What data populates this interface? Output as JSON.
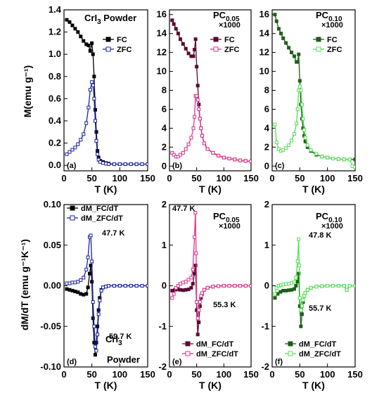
{
  "figure": {
    "top_ylabel": "M(emu g⁻¹)",
    "bottom_ylabel": "dM/dT (emu g⁻¹K⁻¹)",
    "xlabel": "T (K)"
  },
  "chart_data": [
    {
      "id": "a",
      "type": "line",
      "panel_label": "(a)",
      "title": "CrI3 Powder",
      "xlabel": "T (K)",
      "ylabel": "M(emu g-1)",
      "xlim": [
        0,
        150
      ],
      "ylim": [
        -0.05,
        1.4
      ],
      "xticks": [
        "0",
        "50",
        "100",
        "150"
      ],
      "yticks": [
        "0.0",
        "0.2",
        "0.4",
        "0.6",
        "0.8",
        "1.0",
        "1.2",
        "1.4"
      ],
      "legend": "right",
      "series": [
        {
          "name": "FC",
          "color": "#000000",
          "marker": "filled",
          "x": [
            5,
            10,
            15,
            20,
            25,
            30,
            35,
            40,
            44,
            47,
            50,
            52,
            54,
            56,
            58,
            60,
            62,
            65,
            70,
            75,
            80,
            90,
            100,
            110,
            120,
            130,
            140,
            150
          ],
          "y": [
            1.31,
            1.29,
            1.26,
            1.23,
            1.2,
            1.16,
            1.12,
            1.09,
            1.08,
            1.03,
            1.1,
            1.0,
            0.8,
            0.5,
            0.3,
            0.13,
            0.07,
            0.04,
            0.03,
            0.02,
            0.015,
            0.01,
            0.01,
            0.01,
            0.01,
            0.01,
            0.01,
            0.01
          ]
        },
        {
          "name": "ZFC",
          "color": "#1a22a0",
          "marker": "open",
          "x": [
            5,
            10,
            15,
            20,
            25,
            30,
            35,
            40,
            44,
            47,
            50,
            52,
            54,
            56,
            58,
            60,
            62,
            65,
            70,
            75,
            80,
            90,
            100,
            110,
            120,
            130,
            140,
            150
          ],
          "y": [
            0.1,
            0.12,
            0.14,
            0.16,
            0.19,
            0.23,
            0.28,
            0.38,
            0.52,
            0.68,
            0.75,
            0.72,
            0.6,
            0.4,
            0.22,
            0.1,
            0.05,
            0.03,
            0.02,
            0.015,
            0.01,
            0.01,
            0.01,
            0.01,
            0.01,
            0.01,
            0.01,
            0.01
          ]
        }
      ]
    },
    {
      "id": "b",
      "type": "line",
      "panel_label": "(b)",
      "title": "PC0.05",
      "title_note": "×1000",
      "xlabel": "T (K)",
      "xlim": [
        0,
        150
      ],
      "ylim": [
        -0.5,
        16.5
      ],
      "xticks": [
        "0",
        "50",
        "100",
        "150"
      ],
      "yticks": [
        "0",
        "2",
        "4",
        "6",
        "8",
        "10",
        "12",
        "14",
        "16"
      ],
      "legend": "right",
      "series": [
        {
          "name": "FC",
          "color": "#5a0a30",
          "marker": "filled",
          "x": [
            5,
            8,
            12,
            16,
            20,
            25,
            30,
            35,
            40,
            44,
            46,
            48,
            50,
            52,
            54,
            56,
            58,
            60,
            64,
            70,
            80,
            90,
            100,
            110,
            120,
            130,
            140,
            150
          ],
          "y": [
            15.4,
            15.0,
            14.5,
            14.0,
            13.4,
            12.9,
            12.4,
            11.9,
            11.6,
            11.6,
            12.3,
            13.4,
            10.5,
            8.5,
            6.5,
            5.0,
            4.0,
            3.2,
            2.4,
            1.8,
            1.4,
            1.1,
            0.9,
            0.8,
            0.7,
            0.6,
            0.55,
            0.5
          ]
        },
        {
          "name": "ZFC",
          "color": "#e0308a",
          "marker": "open",
          "x": [
            5,
            8,
            12,
            16,
            20,
            25,
            30,
            35,
            40,
            44,
            46,
            48,
            50,
            52,
            54,
            56,
            58,
            60,
            64,
            70,
            80,
            90,
            100,
            110,
            120,
            130,
            140,
            150
          ],
          "y": [
            1.4,
            1.2,
            1.0,
            1.0,
            1.2,
            1.4,
            1.8,
            2.3,
            3.0,
            4.0,
            5.2,
            7.4,
            7.4,
            7.0,
            6.0,
            5.0,
            4.0,
            3.2,
            2.4,
            1.8,
            1.4,
            1.1,
            0.9,
            0.8,
            0.7,
            0.6,
            0.55,
            0.5
          ]
        }
      ]
    },
    {
      "id": "c",
      "type": "line",
      "panel_label": "(c)",
      "title": "PC0.10",
      "title_note": "×1000",
      "xlabel": "T (K)",
      "xlim": [
        0,
        150
      ],
      "ylim": [
        -0.5,
        16.5
      ],
      "xticks": [
        "0",
        "50",
        "100",
        "150"
      ],
      "yticks": [
        "0",
        "2",
        "4",
        "6",
        "8",
        "10",
        "12",
        "14",
        "16"
      ],
      "legend": "right",
      "series": [
        {
          "name": "FC",
          "color": "#1e5e18",
          "marker": "filled",
          "x": [
            5,
            8,
            12,
            16,
            20,
            25,
            30,
            35,
            40,
            44,
            46,
            48,
            50,
            52,
            54,
            56,
            58,
            60,
            64,
            70,
            80,
            90,
            100,
            110,
            120,
            130,
            140,
            150
          ],
          "y": [
            16.0,
            15.3,
            14.5,
            14.0,
            13.5,
            13.0,
            12.5,
            12.0,
            11.6,
            11.0,
            11.0,
            11.8,
            9.0,
            6.5,
            5.0,
            4.0,
            3.2,
            2.6,
            2.0,
            1.6,
            1.2,
            1.0,
            0.9,
            0.8,
            0.75,
            0.7,
            0.7,
            0.7
          ]
        },
        {
          "name": "ZFC",
          "color": "#54e054",
          "marker": "open",
          "x": [
            5,
            8,
            12,
            16,
            20,
            25,
            30,
            35,
            40,
            44,
            46,
            48,
            50,
            52,
            54,
            56,
            58,
            60,
            64,
            70,
            80,
            90,
            100,
            110,
            120,
            130,
            140,
            145,
            150
          ],
          "y": [
            4.4,
            2.5,
            1.8,
            1.6,
            1.7,
            1.9,
            2.2,
            2.7,
            3.4,
            4.5,
            6.0,
            8.0,
            8.4,
            8.0,
            6.5,
            5.0,
            3.8,
            3.0,
            2.2,
            1.7,
            1.3,
            1.0,
            0.9,
            0.8,
            0.75,
            0.7,
            0.7,
            0.0,
            -0.1
          ]
        }
      ]
    },
    {
      "id": "d",
      "type": "line",
      "panel_label": "(d)",
      "title": "CrI3 Powder",
      "xlabel": "T (K)",
      "ylabel": "dM/dT (emu g-1 K-1)",
      "xlim": [
        0,
        150
      ],
      "ylim": [
        -0.1,
        0.1
      ],
      "xticks": [
        "0",
        "50",
        "100",
        "150"
      ],
      "yticks": [
        "-0.10",
        "-0.05",
        "0.00",
        "0.05",
        "0.10"
      ],
      "legend": "top-left",
      "annotations": [
        "47.7 K",
        "59.7 K"
      ],
      "series": [
        {
          "name": "dM_FC/dT",
          "color": "#000000",
          "marker": "filled",
          "x": [
            5,
            10,
            15,
            20,
            25,
            30,
            35,
            40,
            43,
            46,
            48,
            50,
            52,
            54,
            56,
            58,
            60,
            62,
            64,
            67,
            70,
            75,
            80,
            90,
            100,
            110,
            120,
            130,
            140,
            150
          ],
          "y": [
            -0.004,
            -0.005,
            -0.006,
            -0.007,
            -0.008,
            -0.01,
            -0.011,
            -0.01,
            -0.002,
            0.015,
            0.025,
            0.005,
            -0.04,
            -0.07,
            -0.085,
            -0.07,
            -0.05,
            -0.03,
            -0.015,
            -0.005,
            -0.002,
            -0.001,
            0.0,
            0.0,
            0.0,
            0.0,
            0.0,
            0.0,
            0.0,
            0.0
          ]
        },
        {
          "name": "dM_ZFC/dT",
          "color": "#1a22a0",
          "marker": "open",
          "x": [
            5,
            10,
            15,
            20,
            25,
            30,
            35,
            40,
            43,
            46,
            48,
            50,
            52,
            54,
            56,
            58,
            60,
            62,
            64,
            67,
            70,
            75,
            80,
            90,
            100,
            110,
            120,
            130,
            140,
            150
          ],
          "y": [
            0.003,
            0.003,
            0.004,
            0.004,
            0.005,
            0.007,
            0.01,
            0.02,
            0.035,
            0.06,
            0.062,
            0.03,
            -0.02,
            -0.05,
            -0.075,
            -0.08,
            -0.06,
            -0.035,
            -0.018,
            -0.006,
            -0.002,
            -0.001,
            0.0,
            0.0,
            0.0,
            0.0,
            0.0,
            0.0,
            0.0,
            0.0
          ]
        }
      ]
    },
    {
      "id": "e",
      "type": "line",
      "panel_label": "(e)",
      "title": "PC0.05",
      "title_note": "×1000",
      "xlabel": "T (K)",
      "xlim": [
        0,
        150
      ],
      "ylim": [
        -2,
        2
      ],
      "xticks": [
        "0",
        "50",
        "100",
        "150"
      ],
      "yticks": [
        "-2",
        "-1",
        "0",
        "1",
        "2"
      ],
      "legend": "bottom-right",
      "annotations": [
        "47.7 K",
        "55.3 K"
      ],
      "series": [
        {
          "name": "dM_FC/dT",
          "color": "#5a0a30",
          "marker": "filled",
          "x": [
            5,
            10,
            15,
            20,
            25,
            30,
            35,
            40,
            43,
            46,
            48,
            50,
            52,
            54,
            56,
            58,
            60,
            64,
            70,
            80,
            90,
            100,
            110,
            120,
            130,
            140,
            150
          ],
          "y": [
            -0.12,
            -0.1,
            -0.09,
            -0.1,
            -0.11,
            -0.1,
            -0.09,
            -0.05,
            0.05,
            0.3,
            0.5,
            -0.6,
            -1.2,
            -0.9,
            -0.5,
            -0.3,
            -0.2,
            -0.1,
            -0.05,
            -0.02,
            -0.01,
            0.0,
            0.0,
            0.0,
            0.0,
            0.0,
            0.0
          ]
        },
        {
          "name": "dM_ZFC/dT",
          "color": "#e0308a",
          "marker": "open",
          "x": [
            5,
            8,
            12,
            16,
            20,
            25,
            30,
            35,
            40,
            43,
            46,
            47.7,
            49,
            50,
            52,
            54,
            56,
            58,
            60,
            64,
            70,
            80,
            90,
            100,
            110,
            120,
            130,
            140,
            150
          ],
          "y": [
            -0.3,
            -0.2,
            -0.05,
            0.0,
            0.05,
            0.08,
            0.1,
            0.15,
            0.2,
            0.4,
            1.2,
            1.8,
            0.8,
            -0.4,
            -0.8,
            -0.6,
            -0.4,
            -0.25,
            -0.18,
            -0.1,
            -0.05,
            -0.02,
            -0.01,
            0.0,
            0.0,
            0.0,
            0.0,
            0.0,
            0.0
          ]
        }
      ]
    },
    {
      "id": "f",
      "type": "line",
      "panel_label": "(f)",
      "title": "PC0.10",
      "title_note": "×1000",
      "xlabel": "T (K)",
      "xlim": [
        0,
        150
      ],
      "ylim": [
        -2,
        2
      ],
      "xticks": [
        "0",
        "50",
        "100",
        "150"
      ],
      "yticks": [
        "-2",
        "-1",
        "0",
        "1",
        "2"
      ],
      "legend": "bottom-right",
      "annotations": [
        "47.8 K",
        "55.7 K"
      ],
      "series": [
        {
          "name": "dM_FC/dT",
          "color": "#1e5e18",
          "marker": "filled",
          "x": [
            5,
            10,
            15,
            20,
            25,
            30,
            35,
            40,
            43,
            46,
            48,
            50,
            52,
            54,
            56,
            58,
            60,
            64,
            70,
            80,
            90,
            100,
            110,
            120,
            130,
            135,
            140,
            150
          ],
          "y": [
            -0.3,
            -0.2,
            -0.15,
            -0.12,
            -0.12,
            -0.11,
            -0.1,
            -0.08,
            0.0,
            0.1,
            0.3,
            -0.5,
            -1.0,
            -0.7,
            -0.4,
            -0.25,
            -0.18,
            -0.1,
            -0.05,
            -0.02,
            -0.01,
            0.0,
            0.0,
            0.0,
            0.0,
            -0.1,
            0.0,
            0.0
          ]
        },
        {
          "name": "dM_ZFC/dT",
          "color": "#54e054",
          "marker": "open",
          "x": [
            5,
            8,
            12,
            16,
            20,
            25,
            30,
            35,
            40,
            43,
            46,
            47.8,
            49,
            50,
            52,
            54,
            56,
            58,
            60,
            64,
            70,
            80,
            90,
            100,
            110,
            120,
            130,
            135,
            140,
            150
          ],
          "y": [
            -0.2,
            -0.05,
            0.0,
            0.02,
            0.03,
            0.04,
            0.05,
            0.07,
            0.1,
            0.2,
            0.6,
            1.15,
            0.5,
            -0.3,
            -0.6,
            -0.5,
            -0.35,
            -0.25,
            -0.18,
            -0.1,
            -0.05,
            -0.02,
            -0.01,
            0.0,
            0.0,
            0.0,
            0.0,
            -0.1,
            0.0,
            0.0
          ]
        }
      ]
    }
  ]
}
